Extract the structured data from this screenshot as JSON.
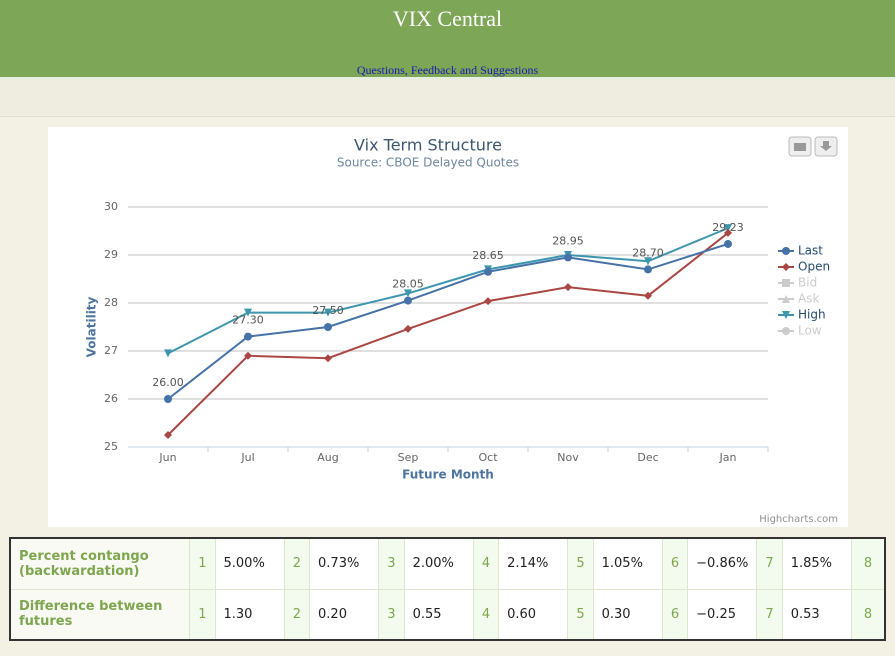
{
  "header": {
    "title": "VIX Central",
    "link": "Questions, Feedback and Suggestions"
  },
  "chart_data": {
    "type": "line",
    "title": "Vix Term Structure",
    "subtitle": "Source: CBOE Delayed Quotes",
    "x_label": "Future Month",
    "y_label": "Volatility",
    "credit": "Highcharts.com",
    "categories": [
      "Jun",
      "Jul",
      "Aug",
      "Sep",
      "Oct",
      "Nov",
      "Dec",
      "Jan"
    ],
    "ylim": [
      25,
      30
    ],
    "yticks": [
      25,
      26,
      27,
      28,
      29,
      30
    ],
    "grid": true,
    "legend": "right",
    "series": [
      {
        "name": "Last",
        "color": "#4572a7",
        "marker": "circle",
        "values": [
          26,
          27.3,
          27.5,
          28.05,
          28.65,
          28.95,
          28.7,
          29.23
        ],
        "value_labels": [
          "26.00",
          "27.30",
          "27.50",
          "28.05",
          "28.65",
          "28.95",
          "28.70",
          "29.23"
        ]
      },
      {
        "name": "Open",
        "color": "#aa4643",
        "marker": "diamond",
        "values": [
          25.25,
          26.9,
          26.85,
          27.46,
          28.04,
          28.33,
          28.15,
          29.46
        ]
      },
      {
        "name": "Bid",
        "color": "#cccccc",
        "marker": "square",
        "hidden": true,
        "values": [
          null,
          null,
          null,
          null,
          null,
          null,
          null,
          null
        ]
      },
      {
        "name": "Ask",
        "color": "#cccccc",
        "marker": "triangle",
        "hidden": true,
        "values": [
          null,
          null,
          null,
          null,
          null,
          null,
          null,
          null
        ]
      },
      {
        "name": "High",
        "color": "#3d96ae",
        "marker": "triangle-down",
        "values": [
          26.95,
          27.8,
          27.8,
          28.2,
          28.7,
          29.0,
          28.87,
          29.56
        ]
      },
      {
        "name": "Low",
        "color": "#cccccc",
        "marker": "circle",
        "hidden": true,
        "values": [
          null,
          null,
          null,
          null,
          null,
          null,
          null,
          null
        ]
      }
    ]
  },
  "table": {
    "rows": [
      [
        "Percent contango (backwardation)",
        "1",
        "5.00%",
        "2",
        "0.73%",
        "3",
        "2.00%",
        "4",
        "2.14%",
        "5",
        "1.05%",
        "6",
        "−0.86%",
        "7",
        "1.85%",
        "8"
      ],
      [
        "Difference between futures",
        "1",
        "1.30",
        "2",
        "0.20",
        "3",
        "0.55",
        "4",
        "0.60",
        "5",
        "0.30",
        "6",
        "−0.25",
        "7",
        "0.53",
        "8"
      ]
    ]
  }
}
